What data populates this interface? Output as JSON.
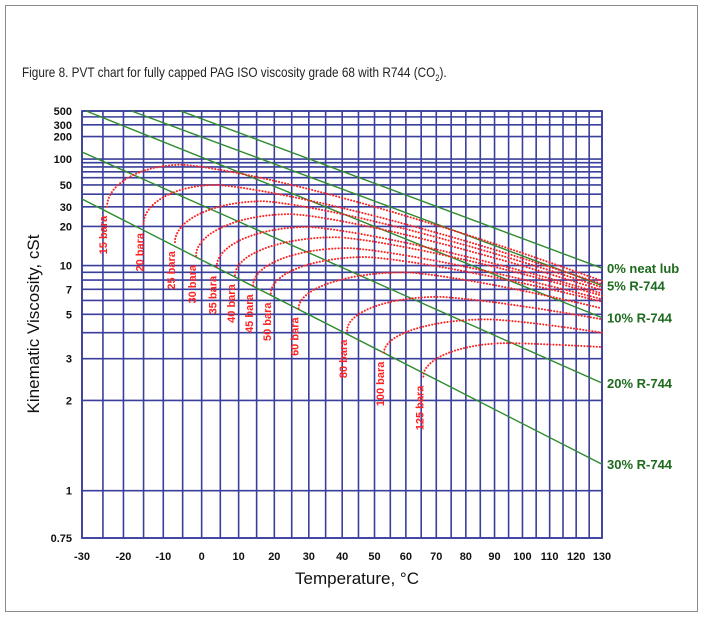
{
  "figure": {
    "title_main": "Figure 8. PVT chart for fully capped PAG ISO viscosity grade 68 with R744 (CO",
    "title_sub": "2",
    "title_suffix": ")."
  },
  "chart_data": {
    "type": "line",
    "xlabel": "Temperature, °C",
    "ylabel": "Kinematic Viscosity, cSt",
    "x_scale": "walther-temperature (log absolute temperature)",
    "y_scale": "walther-viscosity (log-log)",
    "xlim": [
      -30,
      130
    ],
    "ylim": [
      0.75,
      500
    ],
    "grid": true,
    "x_ticks": [
      "-30",
      "-20",
      "-10",
      "0",
      "10",
      "20",
      "30",
      "40",
      "50",
      "60",
      "70",
      "80",
      "90",
      "100",
      "110",
      "120",
      "130"
    ],
    "x_tick_values": [
      -30,
      -20,
      -10,
      0,
      10,
      20,
      30,
      40,
      50,
      60,
      70,
      80,
      90,
      100,
      110,
      120,
      130
    ],
    "x_grid_step": 5,
    "y_ticks": [
      "500",
      "300",
      "200",
      "100",
      "50",
      "30",
      "20",
      "10",
      "7",
      "5",
      "3",
      "2",
      "1",
      "0.75"
    ],
    "y_tick_values": [
      500,
      300,
      200,
      100,
      50,
      30,
      20,
      10,
      7,
      5,
      3,
      2,
      1,
      0.75
    ],
    "y_grid_values": [
      500,
      400,
      300,
      200,
      100,
      90,
      80,
      70,
      60,
      50,
      40,
      30,
      20,
      10,
      9,
      8,
      7,
      6,
      5,
      4,
      3,
      2,
      1,
      0.75
    ],
    "colors": {
      "grid": "#3a3f9c",
      "concentration": "#2e8b2e",
      "pressure": "#ff2222",
      "concentration_label": "#1e6b1e"
    },
    "concentration_lines": [
      {
        "name": "0%  neat lub",
        "points": [
          [
            -5.5,
            500
          ],
          [
            130,
            9.6
          ]
        ]
      },
      {
        "name": "5%  R-744",
        "points": [
          [
            -18,
            500
          ],
          [
            130,
            7.4
          ]
        ]
      },
      {
        "name": "10%  R-744",
        "points": [
          [
            -29,
            500
          ],
          [
            130,
            4.8
          ]
        ]
      },
      {
        "name": "20%  R-744",
        "points": [
          [
            -30,
            123
          ],
          [
            130,
            2.35
          ]
        ]
      },
      {
        "name": "30%  R-744",
        "points": [
          [
            -30,
            35.8
          ],
          [
            130,
            1.2
          ]
        ]
      }
    ],
    "pressure_curves": [
      {
        "name": "15 bara",
        "start": [
          -24,
          30
        ],
        "peak": [
          -5,
          85
        ],
        "end": [
          130,
          7.9
        ]
      },
      {
        "name": "20 bara",
        "start": [
          -15,
          21
        ],
        "peak": [
          4,
          50
        ],
        "end": [
          130,
          7.55
        ]
      },
      {
        "name": "25 bara",
        "start": [
          -7,
          14.9
        ],
        "peak": [
          17,
          34
        ],
        "end": [
          130,
          7.2
        ]
      },
      {
        "name": "30 bara",
        "start": [
          -1.5,
          11.7
        ],
        "peak": [
          25,
          25.7
        ],
        "end": [
          130,
          6.9
        ]
      },
      {
        "name": "35 bara",
        "start": [
          4,
          9.8
        ],
        "peak": [
          30,
          19.8
        ],
        "end": [
          130,
          6.6
        ]
      },
      {
        "name": "40 bara",
        "start": [
          9,
          8.6
        ],
        "peak": [
          38.5,
          16.3
        ],
        "end": [
          130,
          6.4
        ]
      },
      {
        "name": "45 bara",
        "start": [
          14,
          7.4
        ],
        "peak": [
          42,
          13.4
        ],
        "end": [
          130,
          6.1
        ]
      },
      {
        "name": "50 bara",
        "start": [
          19,
          6.6
        ],
        "peak": [
          47.5,
          11.5
        ],
        "end": [
          130,
          5.9
        ]
      },
      {
        "name": "60 bara",
        "start": [
          27,
          5.4
        ],
        "peak": [
          60,
          9.0
        ],
        "end": [
          130,
          5.4
        ]
      },
      {
        "name": "80 bara",
        "start": [
          41.5,
          4.1
        ],
        "peak": [
          71,
          6.3
        ],
        "end": [
          130,
          4.7
        ]
      },
      {
        "name": "100 bara",
        "start": [
          53,
          3.2
        ],
        "peak": [
          88,
          4.7
        ],
        "end": [
          130,
          4.0
        ]
      },
      {
        "name": "125 bara",
        "start": [
          65.7,
          2.5
        ],
        "peak": [
          95,
          3.55
        ],
        "end": [
          130,
          3.4
        ]
      }
    ]
  }
}
